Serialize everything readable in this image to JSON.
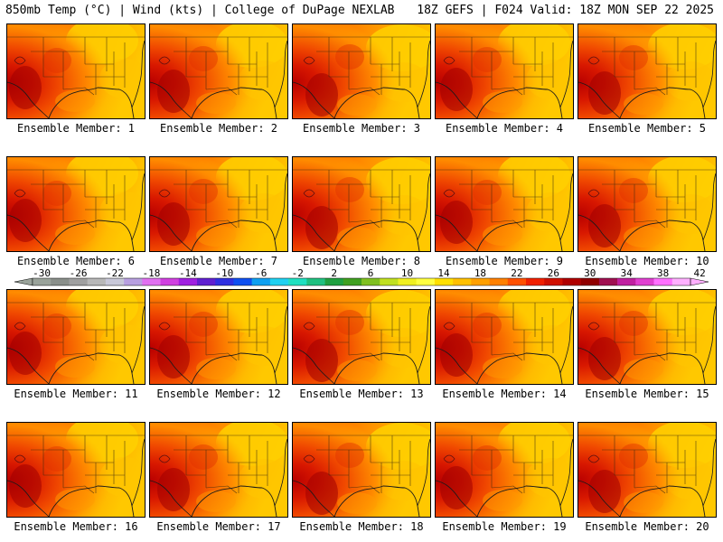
{
  "header": {
    "left": "850mb Temp (°C) | Wind (kts) | College of DuPage NEXLAB",
    "right": "18Z GEFS | F024 Valid: 18Z MON SEP 22 2025"
  },
  "panels": [
    {
      "label": "Ensemble Member: 1"
    },
    {
      "label": "Ensemble Member: 2"
    },
    {
      "label": "Ensemble Member: 3"
    },
    {
      "label": "Ensemble Member: 4"
    },
    {
      "label": "Ensemble Member: 5"
    },
    {
      "label": "Ensemble Member: 6"
    },
    {
      "label": "Ensemble Member: 7"
    },
    {
      "label": "Ensemble Member: 8"
    },
    {
      "label": "Ensemble Member: 9"
    },
    {
      "label": "Ensemble Member: 10"
    },
    {
      "label": "Ensemble Member: 11"
    },
    {
      "label": "Ensemble Member: 12"
    },
    {
      "label": "Ensemble Member: 13"
    },
    {
      "label": "Ensemble Member: 14"
    },
    {
      "label": "Ensemble Member: 15"
    },
    {
      "label": "Ensemble Member: 16"
    },
    {
      "label": "Ensemble Member: 17"
    },
    {
      "label": "Ensemble Member: 18"
    },
    {
      "label": "Ensemble Member: 19"
    },
    {
      "label": "Ensemble Member: 20"
    }
  ],
  "colorbar": {
    "ticks": [
      "-30",
      "-26",
      "-22",
      "-18",
      "-14",
      "-10",
      "-6",
      "-2",
      "2",
      "6",
      "10",
      "14",
      "18",
      "22",
      "26",
      "30",
      "34",
      "38",
      "42"
    ],
    "colors": [
      "#9aa39a",
      "#8a8f8a",
      "#a0a0a0",
      "#b8b8b8",
      "#c8c8d8",
      "#b8a0e0",
      "#e070f0",
      "#d040e0",
      "#a020e0",
      "#6020d0",
      "#3030e0",
      "#1050f0",
      "#10a0f0",
      "#20d0f0",
      "#20e0c0",
      "#20c080",
      "#20a040",
      "#40a020",
      "#80c020",
      "#c0e020",
      "#f0f020",
      "#ffff40",
      "#ffe000",
      "#ffc000",
      "#ffa000",
      "#ff8000",
      "#ff5000",
      "#f02000",
      "#d01000",
      "#b00000",
      "#900000",
      "#a01050",
      "#c020a0",
      "#e040d0",
      "#ff70ff",
      "#ffb0ff"
    ]
  }
}
